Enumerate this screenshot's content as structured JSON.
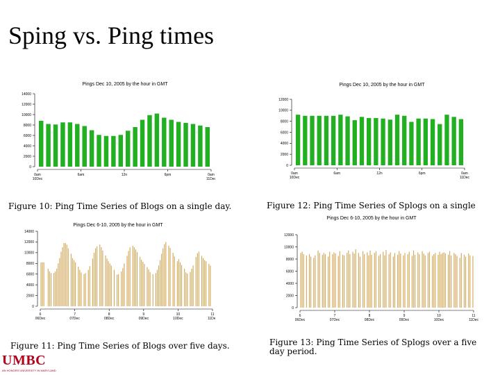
{
  "slide": {
    "title": "Sping vs. Ping times",
    "logo": "UMBC",
    "logo_sub": "AN HONORS UNIVERSITY IN MARYLAND"
  },
  "captions": {
    "fig10": "Figure 10: Ping Time Series of Blogs on a single day.",
    "fig11": "Figure 11: Ping Time Series of Blogs over five days.",
    "fig12": "Figure 12: Ping Time Series of Splogs on a single",
    "fig13": "Figure 13: Ping Time Series of Splogs over a five day period."
  },
  "colors": {
    "green": "#22b022",
    "tan": "#d2a85a"
  },
  "chart_data": [
    {
      "id": "blogs-day",
      "type": "bar",
      "title": "Pings Dec 10, 2005 by the hour in GMT",
      "ylim": [
        0,
        14000
      ],
      "yticks": [
        {
          "v": 0,
          "label": "0"
        },
        {
          "v": 2000,
          "label": "2000"
        },
        {
          "v": 4000,
          "label": "4000"
        },
        {
          "v": 6000,
          "label": "6000"
        },
        {
          "v": 8000,
          "label": "8000"
        },
        {
          "v": 10000,
          "label": "10000"
        },
        {
          "v": 12000,
          "label": "12000"
        },
        {
          "v": 14000,
          "label": "14000"
        }
      ],
      "xticks": [
        {
          "i": 0,
          "l1": "0am",
          "l2": "10Dec"
        },
        {
          "i": 6,
          "l1": "6am",
          "l2": ""
        },
        {
          "i": 12,
          "l1": "12n",
          "l2": ""
        },
        {
          "i": 18,
          "l1": "6pm",
          "l2": ""
        },
        {
          "i": 24,
          "l1": "0am",
          "l2": "11Dec"
        }
      ],
      "values": [
        8800,
        8200,
        8100,
        8500,
        8500,
        8200,
        7800,
        7000,
        6100,
        5900,
        5900,
        6100,
        6900,
        7600,
        9000,
        9900,
        10200,
        9400,
        9000,
        8600,
        8400,
        8200,
        7900,
        7600
      ],
      "color": "#22b022"
    },
    {
      "id": "splogs-day",
      "type": "bar",
      "title": "Pings Dec 10, 2005 by the hour in GMT",
      "ylim": [
        0,
        12000
      ],
      "yticks": [
        {
          "v": 0,
          "label": "0"
        },
        {
          "v": 2000,
          "label": "2000"
        },
        {
          "v": 4000,
          "label": "4000"
        },
        {
          "v": 6000,
          "label": "6000"
        },
        {
          "v": 8000,
          "label": "8000"
        },
        {
          "v": 10000,
          "label": "10000"
        },
        {
          "v": 12000,
          "label": "12000"
        }
      ],
      "xticks": [
        {
          "i": 0,
          "l1": "0am",
          "l2": "10Dec"
        },
        {
          "i": 6,
          "l1": "6am",
          "l2": ""
        },
        {
          "i": 12,
          "l1": "12n",
          "l2": ""
        },
        {
          "i": 18,
          "l1": "6pm",
          "l2": ""
        },
        {
          "i": 24,
          "l1": "0am",
          "l2": "11Dec"
        }
      ],
      "values": [
        9200,
        9000,
        9000,
        9000,
        9000,
        9000,
        9200,
        8900,
        8200,
        8800,
        8600,
        8600,
        8500,
        8300,
        9200,
        9000,
        7900,
        8500,
        8500,
        8400,
        7500,
        9200,
        8800,
        8400
      ],
      "color": "#22b022"
    },
    {
      "id": "blogs-5days",
      "type": "bar",
      "title": "Pings Dec 6-10, 2005 by the hour in GMT",
      "ylim": [
        0,
        14000
      ],
      "yticks": [
        {
          "v": 0,
          "label": "0"
        },
        {
          "v": 2000,
          "label": "2000"
        },
        {
          "v": 4000,
          "label": "4000"
        },
        {
          "v": 6000,
          "label": "6000"
        },
        {
          "v": 8000,
          "label": "8000"
        },
        {
          "v": 10000,
          "label": "10000"
        },
        {
          "v": 12000,
          "label": "12000"
        },
        {
          "v": 14000,
          "label": "14000"
        }
      ],
      "xticks": [
        {
          "i": 0,
          "l1": "6",
          "l2": "06Dec"
        },
        {
          "i": 24,
          "l1": "7",
          "l2": "07Dec"
        },
        {
          "i": 48,
          "l1": "8",
          "l2": "08Dec"
        },
        {
          "i": 72,
          "l1": "9",
          "l2": "09Dec"
        },
        {
          "i": 96,
          "l1": "10",
          "l2": "10Dec"
        },
        {
          "i": 120,
          "l1": "11",
          "l2": "11Dec"
        }
      ],
      "values": [
        8200,
        8200,
        8200,
        0,
        0,
        7000,
        6500,
        6200,
        0,
        6200,
        6500,
        7000,
        8000,
        9000,
        10200,
        11000,
        11800,
        11800,
        11500,
        10800,
        0,
        9800,
        9000,
        8600,
        8200,
        0,
        7400,
        6800,
        6300,
        0,
        6000,
        6200,
        0,
        6800,
        7500,
        0,
        8900,
        10000,
        10800,
        11200,
        0,
        11500,
        11000,
        10400,
        0,
        9500,
        8900,
        8400,
        8000,
        7600,
        0,
        6800,
        0,
        5900,
        6000,
        0,
        6500,
        7100,
        8000,
        0,
        9400,
        10300,
        11000,
        0,
        11300,
        11000,
        10600,
        10100,
        0,
        9200,
        8700,
        8300,
        7900,
        0,
        7300,
        6900,
        6400,
        0,
        6000,
        0,
        6200,
        6800,
        7600,
        8600,
        9800,
        10800,
        11600,
        12000,
        0,
        11300,
        10900,
        0,
        10000,
        9300,
        0,
        8400,
        8800,
        8200,
        7700,
        0,
        7000,
        6300,
        6100,
        0,
        6400,
        7000,
        7600,
        0,
        9200,
        9900,
        10200,
        0,
        9400,
        9000,
        8600,
        8400,
        0,
        7900,
        7600,
        0
      ],
      "color": "#d2a85a"
    },
    {
      "id": "splogs-5days",
      "type": "bar",
      "title": "Pings Dec 6-10, 2005 by the hour in GMT",
      "ylim": [
        0,
        12000
      ],
      "yticks": [
        {
          "v": 0,
          "label": "0"
        },
        {
          "v": 2000,
          "label": "2000"
        },
        {
          "v": 4000,
          "label": "4000"
        },
        {
          "v": 6000,
          "label": "6000"
        },
        {
          "v": 8000,
          "label": "8000"
        },
        {
          "v": 10000,
          "label": "10000"
        },
        {
          "v": 12000,
          "label": "12000"
        }
      ],
      "xticks": [
        {
          "i": 0,
          "l1": "6",
          "l2": "06Dec"
        },
        {
          "i": 24,
          "l1": "7",
          "l2": "07Dec"
        },
        {
          "i": 48,
          "l1": "8",
          "l2": "08Dec"
        },
        {
          "i": 72,
          "l1": "9",
          "l2": "09Dec"
        },
        {
          "i": 96,
          "l1": "10",
          "l2": "10Dec"
        },
        {
          "i": 120,
          "l1": "11",
          "l2": "11Dec"
        }
      ],
      "values": [
        9000,
        9200,
        8800,
        0,
        8600,
        0,
        8800,
        8400,
        0,
        8200,
        8600,
        0,
        9400,
        9000,
        0,
        8700,
        9000,
        8800,
        0,
        8400,
        9200,
        0,
        8800,
        9100,
        8900,
        0,
        8500,
        9300,
        0,
        8700,
        8600,
        0,
        9000,
        9400,
        8800,
        0,
        9200,
        8900,
        9600,
        0,
        9000,
        8400,
        0,
        9300,
        8800,
        0,
        9100,
        8600,
        9400,
        8700,
        0,
        9000,
        9300,
        0,
        8500,
        8800,
        0,
        9200,
        8600,
        9500,
        0,
        8800,
        9100,
        0,
        8400,
        9000,
        0,
        8700,
        9300,
        8900,
        0,
        8600,
        9000,
        0,
        8800,
        9200,
        0,
        8500,
        9400,
        8700,
        0,
        9100,
        8800,
        0,
        9300,
        8900,
        8600,
        0,
        9000,
        9200,
        0,
        8500,
        8800,
        9000,
        0,
        8700,
        9200,
        8800,
        9000,
        9100,
        8900,
        0,
        8700,
        9300,
        8600,
        0,
        9000,
        8800,
        8500,
        0,
        8200,
        9000,
        0,
        8700,
        8400,
        0,
        8900,
        8600,
        0,
        8500
      ],
      "color": "#d2a85a"
    }
  ]
}
